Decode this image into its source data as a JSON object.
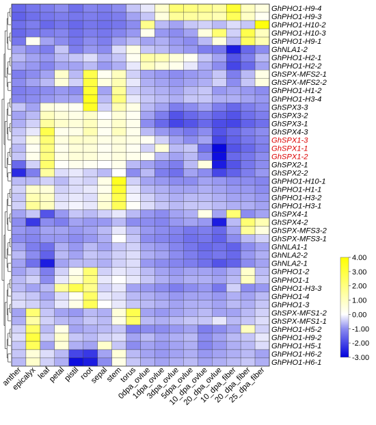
{
  "chart_data": {
    "type": "heatmap",
    "title": "",
    "xlabel": "",
    "ylabel": "",
    "columns": [
      "anther",
      "epicalyx",
      "leaf",
      "petal",
      "pistil",
      "root",
      "sepal",
      "stem",
      "torus",
      "0dpa_ovlue",
      "1dpa_ovlue",
      "3dpa_ovlue",
      "5dpa_ovlue",
      "10_dpa_ovlue",
      "20_dpa_ovlue",
      "10_dpa_fiber",
      "20_dpa_fiber",
      "25_dpa_fiber"
    ],
    "rows": [
      {
        "name": "GhPHO1-H9-4",
        "values": [
          -1.5,
          -1.3,
          -1.2,
          -1.0,
          -1.4,
          -1.1,
          -1.2,
          -1.0,
          -0.5,
          -0.2,
          0.8,
          2.2,
          2.0,
          1.8,
          1.5,
          3.2,
          1.0,
          0.5
        ]
      },
      {
        "name": "GhPHO1-H9-3",
        "values": [
          -1.6,
          -1.4,
          -1.3,
          -1.2,
          -1.3,
          -1.2,
          -1.3,
          -1.2,
          -0.8,
          -0.5,
          0.5,
          1.6,
          1.5,
          1.4,
          1.2,
          2.6,
          0.9,
          0.2
        ]
      },
      {
        "name": "GhPHO1-H10-2",
        "values": [
          -1.4,
          -1.2,
          -1.5,
          -1.3,
          -1.5,
          -1.3,
          -1.4,
          -1.3,
          -1.0,
          1.8,
          -0.6,
          -0.8,
          -0.5,
          -0.4,
          -0.6,
          -0.3,
          -0.5,
          3.8
        ]
      },
      {
        "name": "GhPHO1-H10-3",
        "values": [
          -1.5,
          -1.3,
          -1.2,
          -1.1,
          -1.4,
          -1.2,
          -1.3,
          -1.1,
          -0.9,
          0.3,
          -0.9,
          -1.0,
          -0.8,
          0.5,
          2.2,
          -0.4,
          2.8,
          1.0
        ]
      },
      {
        "name": "GhPHO1-H9-1",
        "values": [
          -1.3,
          0.2,
          -0.8,
          -1.0,
          -1.3,
          -1.0,
          -1.2,
          -0.8,
          -0.6,
          -0.8,
          -0.7,
          -0.9,
          -1.0,
          -0.6,
          0.5,
          -0.6,
          2.5,
          1.2
        ]
      },
      {
        "name": "GhNLA1-2",
        "values": [
          -0.8,
          -1.0,
          -1.2,
          -0.5,
          -1.2,
          -0.9,
          -1.0,
          -0.3,
          0.4,
          -0.5,
          -0.6,
          -0.8,
          -0.9,
          -1.2,
          -1.3,
          -2.6,
          -1.5,
          -1.0
        ]
      },
      {
        "name": "GhPHO1-H2-1",
        "values": [
          -0.6,
          -0.8,
          -0.9,
          -0.6,
          -0.5,
          -0.3,
          -0.7,
          -0.5,
          0.2,
          1.4,
          1.2,
          0.6,
          0.2,
          -0.5,
          -0.8,
          -1.8,
          -1.2,
          -0.6
        ]
      },
      {
        "name": "GhPHO1-H2-2",
        "values": [
          -0.8,
          -0.9,
          -1.1,
          -0.8,
          -0.8,
          -0.6,
          -0.9,
          -0.7,
          -0.2,
          1.0,
          0.6,
          0.3,
          -0.2,
          -0.7,
          -1.0,
          -2.0,
          -1.5,
          -0.8
        ]
      },
      {
        "name": "GhSPX-MFS2-1",
        "values": [
          -1.2,
          -1.0,
          -0.8,
          0.8,
          -0.6,
          2.8,
          0.2,
          1.0,
          -0.4,
          -0.8,
          -0.9,
          -1.0,
          -0.9,
          -0.8,
          -0.5,
          -1.2,
          -0.6,
          0.4
        ]
      },
      {
        "name": "GhSPX-MFS2-2",
        "values": [
          -1.0,
          -0.8,
          -0.6,
          0.6,
          -0.4,
          3.0,
          0.5,
          1.2,
          -0.2,
          -0.7,
          -0.8,
          -0.9,
          -0.8,
          -0.7,
          -0.4,
          -1.0,
          -0.5,
          0.5
        ]
      },
      {
        "name": "GhPHO1-H1-2",
        "values": [
          -1.2,
          -1.1,
          -1.0,
          -0.9,
          -1.0,
          3.2,
          -0.8,
          1.6,
          -0.4,
          -0.6,
          -0.7,
          -0.8,
          -0.6,
          -0.5,
          -0.9,
          -0.8,
          -0.9,
          -1.0
        ]
      },
      {
        "name": "GhPHO1-H3-4",
        "values": [
          -1.1,
          -1.0,
          -0.9,
          -0.8,
          -0.8,
          3.5,
          -0.6,
          2.0,
          -0.2,
          -0.5,
          -0.6,
          -0.7,
          -0.5,
          -0.5,
          -0.7,
          -0.7,
          -0.8,
          -0.9
        ]
      },
      {
        "name": "GhSPX3-3",
        "values": [
          -0.5,
          -0.8,
          0.5,
          0.3,
          0.2,
          3.4,
          -0.4,
          1.2,
          0.4,
          -0.6,
          -0.8,
          -1.2,
          -1.0,
          -0.8,
          -1.2,
          -1.5,
          -1.2,
          -1.0
        ]
      },
      {
        "name": "GhSPX3-2",
        "values": [
          -0.8,
          -0.6,
          1.0,
          0.6,
          0.4,
          0.8,
          0.0,
          0.6,
          0.2,
          -0.8,
          -1.2,
          -1.8,
          -1.5,
          -1.3,
          -1.6,
          -1.8,
          -1.4,
          -1.2
        ]
      },
      {
        "name": "GhSPX3-1",
        "values": [
          -0.7,
          -0.4,
          1.5,
          0.8,
          0.6,
          1.0,
          0.3,
          0.8,
          0.3,
          -1.0,
          -1.5,
          -2.0,
          -1.8,
          -1.5,
          -1.9,
          -2.0,
          -1.6,
          -1.4
        ]
      },
      {
        "name": "GhSPX4-3",
        "values": [
          -0.5,
          -0.2,
          2.8,
          0.3,
          0.4,
          1.2,
          0.2,
          1.0,
          0.3,
          -0.6,
          -0.9,
          -1.1,
          -1.3,
          -1.0,
          -1.8,
          -1.5,
          -1.2,
          -1.0
        ]
      },
      {
        "name": "GhSPX1-3",
        "values": [
          -0.4,
          0.5,
          2.2,
          0.5,
          0.8,
          0.8,
          0.4,
          0.6,
          0.4,
          0.2,
          -0.4,
          -0.8,
          -1.0,
          -0.8,
          -2.0,
          -1.6,
          -1.3,
          -1.1
        ]
      },
      {
        "name": "GhSPX1-1",
        "values": [
          -0.6,
          0.2,
          2.0,
          0.3,
          0.6,
          0.6,
          0.2,
          0.5,
          0.2,
          -0.4,
          0.6,
          -0.6,
          -0.5,
          -1.4,
          -2.9,
          -1.8,
          -1.5,
          -1.2
        ]
      },
      {
        "name": "GhSPX1-2",
        "values": [
          -0.5,
          0.3,
          2.0,
          0.4,
          0.6,
          0.6,
          0.3,
          0.5,
          0.3,
          0.2,
          -0.6,
          -0.8,
          -0.6,
          -1.0,
          -2.8,
          -1.5,
          -1.3,
          -1.0
        ]
      },
      {
        "name": "GhSPX2-1",
        "values": [
          -1.5,
          -0.4,
          2.3,
          0.1,
          0.3,
          0.2,
          0.0,
          0.3,
          -0.6,
          -0.8,
          -1.0,
          -1.2,
          -0.6,
          0.5,
          -2.6,
          -1.8,
          -1.3,
          -1.0
        ]
      },
      {
        "name": "GhSPX2-2",
        "values": [
          -2.4,
          -1.2,
          1.5,
          -0.3,
          -0.2,
          -0.4,
          -0.6,
          0.0,
          -1.0,
          -0.6,
          -1.2,
          -1.4,
          -0.8,
          -1.0,
          -2.0,
          -1.6,
          -1.2,
          -0.9
        ]
      },
      {
        "name": "GhPHO1-H10-1",
        "values": [
          -0.6,
          -0.6,
          -0.4,
          -0.6,
          -0.3,
          -0.4,
          0.4,
          3.5,
          -0.4,
          -0.8,
          -0.9,
          -1.0,
          -1.0,
          -0.8,
          -0.9,
          -1.0,
          -1.0,
          -1.1
        ]
      },
      {
        "name": "GhPHO1-H1-1",
        "values": [
          -0.4,
          0.8,
          0.6,
          -0.4,
          -0.3,
          -0.2,
          0.3,
          3.2,
          -0.2,
          -0.6,
          -0.7,
          -0.8,
          -0.8,
          -0.7,
          -0.8,
          -0.9,
          -0.9,
          -1.0
        ]
      },
      {
        "name": "GhPHO1-H3-2",
        "values": [
          -0.5,
          1.2,
          0.9,
          -0.3,
          -0.2,
          -0.3,
          0.6,
          2.8,
          -0.1,
          -0.4,
          -0.6,
          -0.7,
          -0.6,
          -0.6,
          -0.7,
          -0.8,
          -0.8,
          -0.9
        ]
      },
      {
        "name": "GhPHO1-H3-1",
        "values": [
          -0.4,
          1.6,
          1.0,
          -0.2,
          -0.1,
          -0.2,
          0.7,
          2.6,
          0.1,
          -0.3,
          -0.5,
          -0.6,
          -0.5,
          -0.5,
          -0.6,
          -0.7,
          -0.7,
          -0.8
        ]
      },
      {
        "name": "GhSPX4-1",
        "values": [
          -0.8,
          -0.5,
          -1.8,
          -0.9,
          -0.5,
          -0.6,
          -0.4,
          -0.2,
          -0.6,
          -0.9,
          -1.0,
          -0.8,
          -0.7,
          0.4,
          -0.8,
          2.2,
          -1.0,
          -0.8
        ]
      },
      {
        "name": "GhSPX4-2",
        "values": [
          -1.0,
          -2.2,
          -1.0,
          -1.2,
          -0.8,
          -0.9,
          -0.9,
          -0.6,
          -1.0,
          -1.0,
          -1.1,
          -0.9,
          -0.8,
          -0.9,
          -2.6,
          -0.6,
          2.2,
          1.2
        ]
      },
      {
        "name": "GhSPX-MFS3-2",
        "values": [
          -0.9,
          -1.0,
          -0.8,
          -0.8,
          -0.9,
          -0.8,
          -0.6,
          -0.2,
          -0.6,
          -0.9,
          -1.0,
          -1.1,
          -1.3,
          -1.2,
          -1.5,
          -0.8,
          1.6,
          0.5
        ]
      },
      {
        "name": "GhSPX-MFS3-1",
        "values": [
          -1.0,
          -1.1,
          -0.9,
          -0.9,
          -1.0,
          -0.9,
          -0.7,
          0.0,
          -0.5,
          -1.0,
          -1.1,
          -1.2,
          -1.4,
          -1.3,
          -1.6,
          -1.0,
          -0.6,
          -0.4
        ]
      },
      {
        "name": "GhNLA1-1",
        "values": [
          -0.8,
          -1.2,
          -1.4,
          -0.7,
          -0.9,
          -0.6,
          -0.8,
          -0.5,
          -0.4,
          -0.8,
          -0.9,
          -1.1,
          -1.3,
          -1.5,
          -1.4,
          -1.6,
          -1.0,
          -0.8
        ]
      },
      {
        "name": "GhNLA2-2",
        "values": [
          -0.6,
          -1.0,
          -1.6,
          -0.6,
          -0.8,
          -0.5,
          -0.6,
          -0.4,
          -0.3,
          -0.7,
          -0.8,
          -1.0,
          -1.2,
          -1.4,
          -1.3,
          -1.5,
          -0.9,
          -0.7
        ]
      },
      {
        "name": "GhNLA2-1",
        "values": [
          -0.8,
          -1.4,
          -2.6,
          -0.8,
          -0.6,
          -0.6,
          -0.7,
          -0.4,
          -0.3,
          -0.9,
          -1.0,
          -1.1,
          -1.2,
          -1.4,
          -1.8,
          -1.6,
          -1.0,
          -0.8
        ]
      },
      {
        "name": "GhPHO1-2",
        "values": [
          -0.8,
          -0.6,
          -1.2,
          -0.4,
          0.3,
          2.2,
          -0.4,
          -0.2,
          -0.3,
          -0.6,
          -0.8,
          -0.9,
          -0.8,
          -0.8,
          -0.9,
          -0.7,
          0.8,
          -0.6
        ]
      },
      {
        "name": "GhPHO1-1",
        "values": [
          -0.6,
          -0.4,
          -1.0,
          -0.2,
          0.6,
          2.0,
          -0.2,
          0.0,
          -0.2,
          -0.5,
          -0.7,
          -0.8,
          -0.7,
          -0.7,
          -0.8,
          -0.6,
          1.0,
          -0.5
        ]
      },
      {
        "name": "GhPHO1-H3-3",
        "values": [
          -0.6,
          -0.8,
          -0.6,
          1.6,
          2.8,
          1.8,
          -0.4,
          -0.2,
          -0.8,
          -0.9,
          -1.0,
          -1.2,
          -1.0,
          -0.9,
          -1.3,
          -0.4,
          -1.0,
          -0.9
        ]
      },
      {
        "name": "GhPHO1-4",
        "values": [
          -0.4,
          -0.5,
          -0.8,
          -0.3,
          0.2,
          2.4,
          -0.2,
          -0.3,
          -0.6,
          -0.7,
          -0.8,
          -0.9,
          -0.8,
          -0.8,
          -0.9,
          -0.7,
          -0.8,
          -0.6
        ]
      },
      {
        "name": "GhPHO1-3",
        "values": [
          -0.3,
          -0.4,
          -0.6,
          -0.2,
          0.4,
          2.6,
          0.0,
          -0.2,
          -0.5,
          -0.6,
          -0.7,
          -0.8,
          -0.7,
          -0.7,
          -0.8,
          -0.6,
          -0.7,
          -0.5
        ]
      },
      {
        "name": "GhSPX-MFS1-2",
        "values": [
          -0.8,
          2.2,
          -0.5,
          -0.8,
          -0.9,
          -0.6,
          -0.7,
          0.6,
          2.8,
          -0.8,
          -0.9,
          -0.8,
          -0.7,
          -0.6,
          -0.8,
          -0.8,
          -0.6,
          -0.4
        ]
      },
      {
        "name": "GhSPX-MFS1-1",
        "values": [
          -0.7,
          1.4,
          -0.4,
          -0.6,
          -0.7,
          -0.5,
          -0.6,
          0.4,
          2.4,
          -0.6,
          -0.7,
          -0.6,
          -0.5,
          -0.5,
          -0.2,
          -0.6,
          -0.5,
          -0.3
        ]
      },
      {
        "name": "GhPHO1-H5-2",
        "values": [
          -0.4,
          2.4,
          -0.6,
          0.4,
          -0.8,
          -0.7,
          -0.6,
          -0.5,
          -1.2,
          -1.0,
          -1.0,
          -0.9,
          -0.8,
          -1.2,
          -1.0,
          -0.8,
          1.0,
          -0.4
        ]
      },
      {
        "name": "GhPHO1-H9-2",
        "values": [
          -0.3,
          3.0,
          -0.4,
          0.8,
          -0.5,
          -0.6,
          -0.4,
          -0.3,
          -0.8,
          -0.6,
          -0.8,
          -0.7,
          -0.6,
          -1.0,
          -0.8,
          -0.6,
          -0.5,
          -0.2
        ]
      },
      {
        "name": "GhPHO1-H5-1",
        "values": [
          -0.5,
          2.6,
          -0.8,
          0.6,
          -0.7,
          -0.8,
          0.8,
          -0.5,
          -1.0,
          -0.8,
          -0.9,
          -0.8,
          -0.7,
          -1.1,
          -0.9,
          -0.7,
          -0.6,
          -0.3
        ]
      },
      {
        "name": "GhPHO1-H6-2",
        "values": [
          -0.5,
          0.6,
          -0.3,
          -0.6,
          -2.0,
          -2.2,
          -0.8,
          0.6,
          -0.6,
          -0.8,
          -0.9,
          -0.8,
          -0.7,
          -0.9,
          -0.8,
          -0.7,
          -0.6,
          -0.8
        ]
      },
      {
        "name": "GhPHO1-H6-1",
        "values": [
          -0.6,
          0.8,
          -0.4,
          -0.7,
          -2.8,
          -2.6,
          -1.0,
          0.4,
          -0.5,
          -0.7,
          -0.8,
          -0.7,
          -0.6,
          -0.8,
          -0.7,
          -0.6,
          -0.5,
          -0.7
        ]
      }
    ],
    "highlighted_rows": [
      "GhSPX1-3",
      "GhSPX1-1",
      "GhSPX1-2"
    ],
    "colorscale": {
      "min": -3.0,
      "max": 4.0,
      "colors": [
        {
          "value": -3.0,
          "color": "#0000dd"
        },
        {
          "value": -1.0,
          "color": "#8c8cf0"
        },
        {
          "value": 0.0,
          "color": "#ffffff"
        },
        {
          "value": 4.0,
          "color": "#ffff00"
        }
      ],
      "tick_labels": [
        "4.00",
        "3.00",
        "2.00",
        "1.00",
        "0.00",
        "-1.00",
        "-2.00",
        "-3.00"
      ]
    },
    "label_colors": {
      "normal": "#000000",
      "highlight": "#dd0000"
    },
    "dendrogram": "left"
  }
}
